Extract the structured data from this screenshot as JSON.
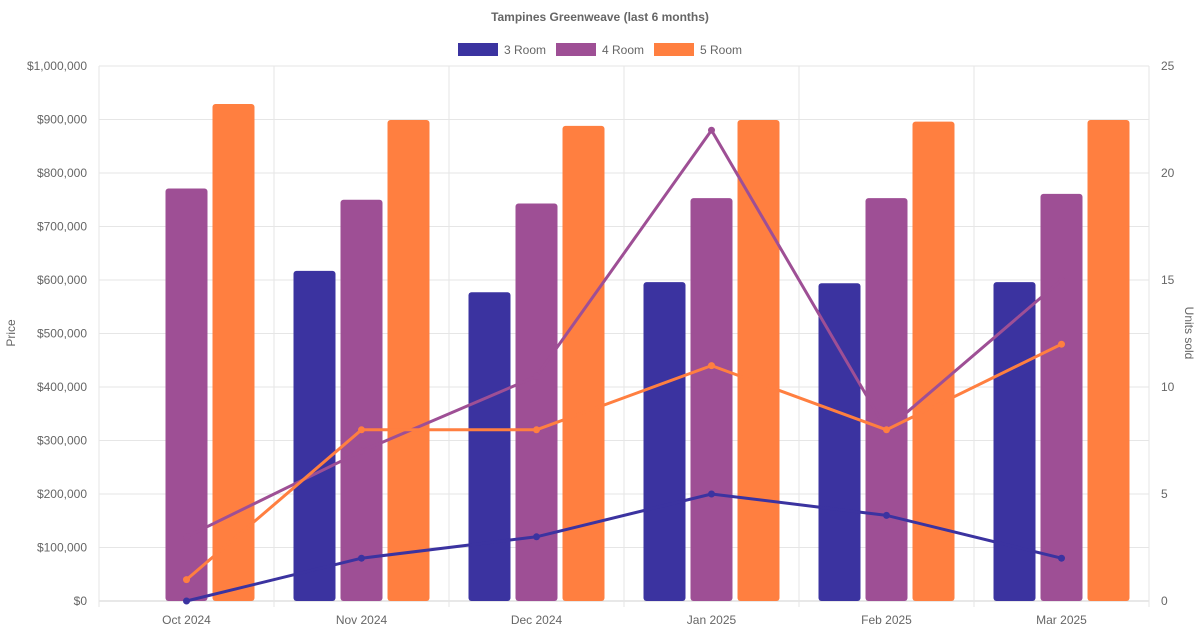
{
  "chart_data": {
    "type": "bar",
    "title": "Tampines Greenweave (last 6 months)",
    "categories": [
      "Oct 2024",
      "Nov 2024",
      "Dec 2024",
      "Jan 2025",
      "Feb 2025",
      "Mar 2025"
    ],
    "y_left": {
      "label": "Price",
      "ticks": [
        "$0",
        "$100,000",
        "$200,000",
        "$300,000",
        "$400,000",
        "$500,000",
        "$600,000",
        "$700,000",
        "$800,000",
        "$900,000",
        "$1,000,000"
      ],
      "range": [
        0,
        1000000
      ]
    },
    "y_right": {
      "label": "Units sold",
      "ticks": [
        "0",
        "5",
        "10",
        "15",
        "20",
        "25"
      ],
      "range": [
        0,
        25
      ]
    },
    "legend_position": "top",
    "grid": true,
    "series": [
      {
        "name": "3 Room",
        "color": "#3b33a0",
        "price": [
          null,
          617000,
          577000,
          596000,
          594000,
          596000
        ],
        "units": [
          0,
          2,
          3,
          5,
          4,
          2
        ]
      },
      {
        "name": "4 Room",
        "color": "#9e4f95",
        "price": [
          771000,
          750000,
          743000,
          753000,
          753000,
          761000
        ],
        "units": [
          3,
          7,
          10.5,
          22,
          8,
          15
        ]
      },
      {
        "name": "5 Room",
        "color": "#ff7f40",
        "price": [
          929000,
          899000,
          888000,
          899000,
          896000,
          899000
        ],
        "units": [
          1,
          8,
          8,
          11,
          8,
          12
        ]
      }
    ]
  }
}
